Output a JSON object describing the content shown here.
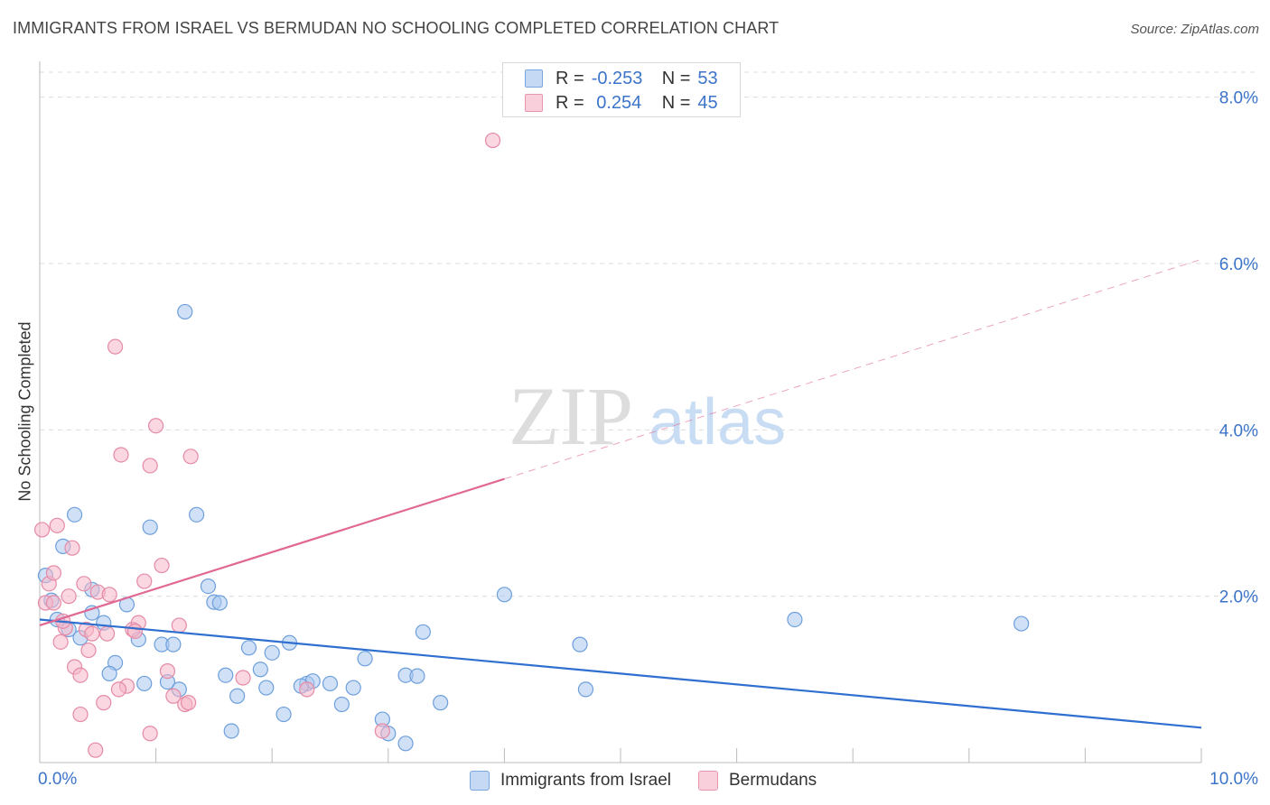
{
  "header": {
    "title": "IMMIGRANTS FROM ISRAEL VS BERMUDAN NO SCHOOLING COMPLETED CORRELATION CHART",
    "source": "Source: ZipAtlas.com"
  },
  "watermark": {
    "part1": "ZIP",
    "part2": "atlas"
  },
  "stats_legend": {
    "rows": [
      {
        "r_label": "R =",
        "r_value": "-0.253",
        "n_label": "N =",
        "n_value": "53",
        "color": "#a9c8f0"
      },
      {
        "r_label": "R =",
        "r_value": " 0.254",
        "n_label": "N =",
        "n_value": "45",
        "color": "#f5b7c9"
      }
    ]
  },
  "colors": {
    "blue_fill": "#a9c8f0",
    "blue_stroke": "#6d9fdc",
    "blue_line": "#2f6fcf",
    "pink_fill": "#f5b7c9",
    "pink_stroke": "#e58aa6",
    "pink_line": "#e06892",
    "axis_label": "#3b74c9",
    "grid": "#dcdcdc"
  },
  "chart_data": {
    "type": "scatter",
    "title": "IMMIGRANTS FROM ISRAEL VS BERMUDAN NO SCHOOLING COMPLETED CORRELATION CHART",
    "xlabel": "",
    "ylabel": "No Schooling Completed",
    "xlim": [
      0,
      10
    ],
    "ylim": [
      0,
      8.3
    ],
    "x_tick_labels": [
      "0.0%",
      "10.0%"
    ],
    "y_ticks": [
      2,
      4,
      6,
      8
    ],
    "y_tick_labels": [
      "2.0%",
      "4.0%",
      "6.0%",
      "8.0%"
    ],
    "grid": true,
    "legend": [
      "Immigrants from Israel",
      "Bermudans"
    ],
    "series": [
      {
        "name": "Immigrants from Israel",
        "r": -0.253,
        "n": 53,
        "trend": {
          "x0": 0,
          "y0": 1.72,
          "x1": 10,
          "y1": 0.42,
          "solid_to": 10
        },
        "points": [
          [
            0.05,
            2.25
          ],
          [
            0.1,
            1.95
          ],
          [
            0.15,
            1.72
          ],
          [
            0.25,
            1.6
          ],
          [
            0.35,
            1.5
          ],
          [
            0.45,
            1.8
          ],
          [
            0.55,
            1.68
          ],
          [
            0.65,
            1.2
          ],
          [
            0.75,
            1.9
          ],
          [
            0.85,
            1.48
          ],
          [
            1.05,
            1.42
          ],
          [
            0.95,
            2.83
          ],
          [
            1.25,
            5.42
          ],
          [
            1.35,
            2.98
          ],
          [
            1.45,
            2.12
          ],
          [
            1.5,
            1.93
          ],
          [
            1.55,
            1.92
          ],
          [
            1.6,
            1.05
          ],
          [
            1.7,
            0.8
          ],
          [
            1.8,
            1.38
          ],
          [
            1.9,
            1.12
          ],
          [
            1.95,
            0.9
          ],
          [
            2.0,
            1.32
          ],
          [
            2.1,
            0.58
          ],
          [
            2.15,
            1.44
          ],
          [
            2.3,
            0.95
          ],
          [
            2.35,
            0.98
          ],
          [
            2.5,
            0.95
          ],
          [
            2.6,
            0.7
          ],
          [
            2.7,
            0.9
          ],
          [
            2.8,
            1.25
          ],
          [
            2.95,
            0.52
          ],
          [
            3.15,
            1.05
          ],
          [
            3.25,
            1.04
          ],
          [
            3.3,
            1.57
          ],
          [
            3.45,
            0.72
          ],
          [
            4.0,
            2.02
          ],
          [
            4.65,
            1.42
          ],
          [
            4.7,
            0.88
          ],
          [
            6.5,
            1.72
          ],
          [
            8.45,
            1.67
          ],
          [
            0.3,
            2.98
          ],
          [
            0.45,
            2.08
          ],
          [
            0.6,
            1.07
          ],
          [
            0.9,
            0.95
          ],
          [
            1.1,
            0.97
          ],
          [
            1.2,
            0.88
          ],
          [
            1.65,
            0.38
          ],
          [
            2.25,
            0.92
          ],
          [
            0.2,
            2.6
          ],
          [
            3.0,
            0.35
          ],
          [
            3.15,
            0.23
          ],
          [
            1.15,
            1.42
          ]
        ]
      },
      {
        "name": "Bermudans",
        "r": 0.254,
        "n": 45,
        "trend": {
          "x0": 0,
          "y0": 1.65,
          "x1": 10,
          "y1": 6.05,
          "solid_to": 4.0
        },
        "points": [
          [
            0.02,
            2.8
          ],
          [
            0.05,
            1.92
          ],
          [
            0.08,
            2.15
          ],
          [
            0.12,
            2.28
          ],
          [
            0.15,
            2.85
          ],
          [
            0.18,
            1.45
          ],
          [
            0.22,
            1.62
          ],
          [
            0.25,
            2.0
          ],
          [
            0.28,
            2.58
          ],
          [
            0.3,
            1.15
          ],
          [
            0.35,
            1.05
          ],
          [
            0.38,
            2.15
          ],
          [
            0.4,
            1.6
          ],
          [
            0.45,
            1.55
          ],
          [
            0.5,
            2.05
          ],
          [
            0.55,
            0.72
          ],
          [
            0.6,
            2.02
          ],
          [
            0.65,
            5.0
          ],
          [
            0.7,
            3.7
          ],
          [
            0.75,
            0.92
          ],
          [
            0.8,
            1.6
          ],
          [
            0.85,
            1.68
          ],
          [
            0.9,
            2.18
          ],
          [
            0.95,
            3.57
          ],
          [
            1.0,
            4.05
          ],
          [
            1.05,
            2.37
          ],
          [
            1.1,
            1.1
          ],
          [
            1.15,
            0.8
          ],
          [
            1.2,
            1.65
          ],
          [
            1.25,
            0.7
          ],
          [
            1.3,
            3.68
          ],
          [
            0.12,
            1.92
          ],
          [
            0.35,
            0.58
          ],
          [
            0.48,
            0.15
          ],
          [
            0.68,
            0.88
          ],
          [
            0.82,
            1.58
          ],
          [
            0.95,
            0.35
          ],
          [
            1.28,
            0.72
          ],
          [
            1.75,
            1.02
          ],
          [
            2.3,
            0.88
          ],
          [
            2.95,
            0.38
          ],
          [
            0.2,
            1.7
          ],
          [
            0.42,
            1.35
          ],
          [
            0.58,
            1.55
          ],
          [
            3.9,
            7.48
          ]
        ]
      }
    ]
  }
}
